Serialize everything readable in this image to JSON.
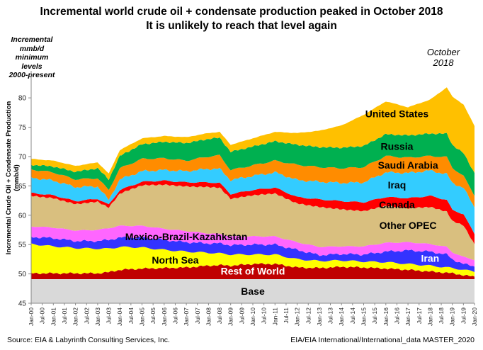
{
  "title_line1": "Incremental world crude oil + condensate production peaked in October 2018",
  "title_line2": "It is unlikely to reach that level again",
  "note_lines": [
    "Incremental",
    "mmb/d",
    "minimum levels",
    "2000-present"
  ],
  "peak_lines": [
    "October",
    "2018"
  ],
  "source_left": "Source: EIA & Labyrinth Consulting Services, Inc.",
  "source_right": "EIA/EIA International/International_data MASTER_2020",
  "chart_data": {
    "type": "area",
    "title": "Incremental world crude oil + condensate production peaked in October 2018",
    "ylabel": "Incremental Crude Oil + Condensate Production  (mmb/d)",
    "xlabel": "",
    "ylim": [
      45,
      84
    ],
    "yticks": [
      45,
      50,
      55,
      60,
      65,
      70,
      75,
      80
    ],
    "x_ticks": [
      "Jan-00",
      "Jul-00",
      "Jan-01",
      "Jul-01",
      "Jan-02",
      "Jul-02",
      "Jan-03",
      "Jul-03",
      "Jan-04",
      "Jul-04",
      "Jan-05",
      "Jul-05",
      "Jan-06",
      "Jul-06",
      "Jan-07",
      "Jul-07",
      "Jan-08",
      "Jul-08",
      "Jan-09",
      "Jul-09",
      "Jan-10",
      "Jul-10",
      "Jan-11",
      "Jul-11",
      "Jan-12",
      "Jul-12",
      "Jan-13",
      "Jul-13",
      "Jan-14",
      "Jul-14",
      "Jan-15",
      "Jul-15",
      "Jan-16",
      "Jul-16",
      "Jan-17",
      "Jul-17",
      "Jan-18",
      "Jul-18",
      "Jan-19",
      "Jul-19",
      "Jan-20"
    ],
    "grid": false,
    "legend": "labels on areas",
    "x_dates": [
      "Jan-00",
      "Jan-01",
      "Jan-02",
      "Jan-03",
      "Jul-03",
      "Jan-04",
      "Jan-05",
      "Jan-06",
      "Jan-07",
      "Jan-08",
      "Jul-08",
      "Jan-09",
      "Jan-10",
      "Jan-11",
      "Jan-12",
      "Jan-13",
      "Jan-14",
      "Jan-15",
      "Jan-16",
      "Jan-17",
      "Jan-18",
      "Oct-18",
      "Jan-19",
      "Jul-19",
      "Jan-20"
    ],
    "series": [
      {
        "name": "Base",
        "color": "#d9d9d9",
        "values": [
          49.1,
          49.1,
          49.1,
          49.1,
          49.1,
          49.1,
          49.1,
          49.1,
          49.1,
          49.1,
          49.1,
          49.1,
          49.1,
          49.1,
          49.1,
          49.1,
          49.1,
          49.1,
          49.1,
          49.1,
          49.1,
          49.1,
          49.1,
          49.1,
          49.1
        ]
      },
      {
        "name": "Rest of World",
        "color": "#c00000",
        "values": [
          1.0,
          1.0,
          1.0,
          1.0,
          1.2,
          1.6,
          1.8,
          1.9,
          2.0,
          2.3,
          2.4,
          2.3,
          2.6,
          2.6,
          2.0,
          1.9,
          2.1,
          2.0,
          1.8,
          1.6,
          1.3,
          1.1,
          1.0,
          0.7,
          0.4
        ]
      },
      {
        "name": "North Sea",
        "color": "#ffff00",
        "values": [
          5.0,
          4.6,
          4.3,
          4.2,
          4.0,
          3.9,
          3.6,
          3.1,
          2.7,
          2.2,
          2.0,
          1.9,
          1.6,
          1.6,
          1.4,
          1.2,
          1.1,
          1.0,
          1.1,
          1.0,
          1.0,
          0.9,
          0.9,
          0.9,
          0.9
        ]
      },
      {
        "name": "Iran",
        "color": "#3333ff",
        "values": [
          1.2,
          1.4,
          1.2,
          1.3,
          1.5,
          1.6,
          1.7,
          1.7,
          1.6,
          1.6,
          1.7,
          1.6,
          1.7,
          1.7,
          1.6,
          1.0,
          1.1,
          1.2,
          1.8,
          2.3,
          2.4,
          2.2,
          1.5,
          1.0,
          0.9
        ]
      },
      {
        "name": "Mexico-Brazil-Kazahkstan",
        "color": "#ff66ff",
        "values": [
          1.8,
          1.8,
          1.8,
          1.9,
          2.0,
          2.0,
          2.0,
          1.9,
          1.9,
          1.7,
          1.6,
          1.5,
          1.4,
          1.4,
          1.3,
          1.4,
          1.3,
          1.4,
          1.5,
          1.4,
          1.3,
          1.3,
          1.2,
          1.2,
          1.1
        ]
      },
      {
        "name": "Other OPEC",
        "color": "#d9bf7f",
        "values": [
          5.2,
          5.0,
          4.5,
          4.8,
          3.5,
          5.5,
          6.9,
          7.5,
          7.6,
          7.9,
          7.9,
          6.4,
          7.0,
          7.3,
          6.6,
          6.8,
          6.3,
          6.0,
          6.3,
          5.8,
          6.3,
          6.0,
          5.3,
          5.4,
          2.6
        ]
      },
      {
        "name": "Canada",
        "color": "#ff0000",
        "values": [
          0.5,
          0.5,
          0.5,
          0.5,
          0.5,
          0.6,
          0.6,
          0.7,
          0.7,
          0.8,
          0.8,
          0.8,
          0.9,
          1.0,
          1.1,
          1.3,
          1.4,
          1.5,
          1.5,
          1.7,
          1.9,
          2.0,
          1.9,
          1.9,
          1.8
        ]
      },
      {
        "name": "Iraq",
        "color": "#33ccff",
        "values": [
          2.6,
          2.5,
          2.4,
          2.1,
          0.8,
          1.8,
          1.8,
          1.8,
          1.9,
          2.3,
          2.4,
          2.4,
          2.4,
          2.6,
          2.9,
          3.0,
          3.1,
          3.4,
          4.2,
          4.3,
          4.3,
          4.4,
          4.6,
          4.5,
          4.5
        ]
      },
      {
        "name": "Saudi Arabia",
        "color": "#ff8c00",
        "values": [
          1.4,
          1.4,
          1.3,
          1.4,
          1.7,
          1.9,
          2.1,
          2.0,
          1.8,
          2.1,
          2.3,
          1.7,
          1.8,
          2.0,
          2.6,
          2.5,
          2.5,
          2.6,
          2.8,
          2.6,
          2.5,
          2.9,
          2.6,
          2.0,
          2.1
        ]
      },
      {
        "name": "Russia",
        "color": "#00b050",
        "values": [
          0.8,
          1.0,
          1.3,
          1.7,
          1.8,
          2.1,
          2.5,
          2.8,
          3.0,
          3.0,
          3.0,
          3.1,
          3.2,
          3.3,
          3.4,
          3.4,
          3.5,
          3.6,
          3.7,
          3.8,
          3.8,
          4.0,
          3.9,
          3.9,
          3.8
        ]
      },
      {
        "name": "United States",
        "color": "#ffc000",
        "values": [
          1.0,
          1.0,
          1.0,
          1.0,
          1.0,
          1.0,
          1.0,
          1.0,
          1.0,
          1.0,
          1.0,
          1.2,
          1.4,
          1.6,
          2.0,
          2.8,
          3.8,
          5.3,
          5.6,
          4.8,
          5.8,
          7.9,
          8.2,
          8.3,
          8.0
        ]
      }
    ]
  }
}
